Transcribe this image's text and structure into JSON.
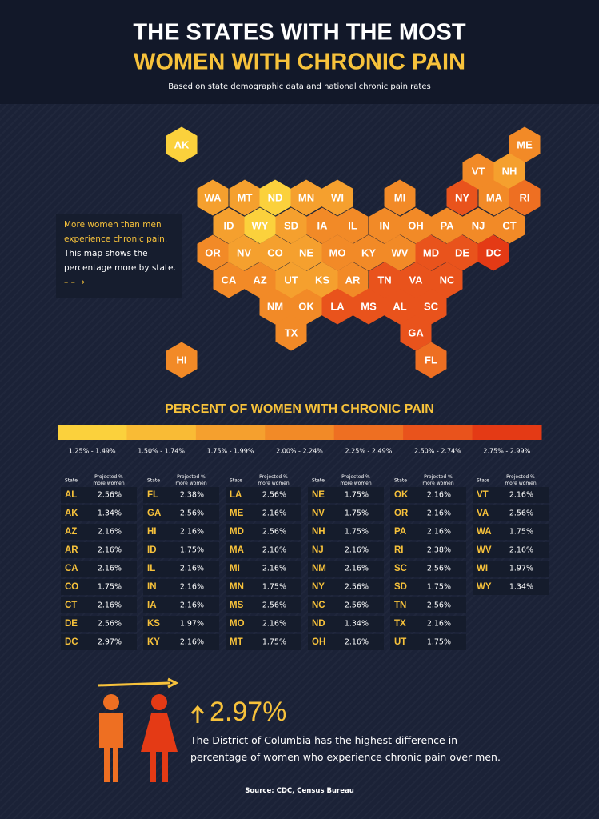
{
  "header": {
    "title_line1": "THE STATES WITH THE MOST",
    "title_line2": "WOMEN WITH CHRONIC PAIN",
    "subtitle": "Based on state demographic data and national chronic pain rates"
  },
  "note": {
    "highlight": "More women than men experience chronic pain.",
    "body": "This map shows the percentage more by state."
  },
  "legend": {
    "title": "PERCENT OF WOMEN WITH CHRONIC PAIN",
    "bins": [
      {
        "label": "1.25% - 1.49%",
        "color": "#fbd13c"
      },
      {
        "label": "1.50% - 1.74%",
        "color": "#f9bb35"
      },
      {
        "label": "1.75% - 1.99%",
        "color": "#f5a02e"
      },
      {
        "label": "2.00% - 2.24%",
        "color": "#f28a27"
      },
      {
        "label": "2.25% - 2.49%",
        "color": "#ee6f22"
      },
      {
        "label": "2.50% - 2.74%",
        "color": "#e9531c"
      },
      {
        "label": "2.75% - 2.99%",
        "color": "#e43a15"
      }
    ]
  },
  "table": {
    "headers": [
      "State",
      "Projected % more women"
    ],
    "rows": [
      [
        "AL",
        "2.56%"
      ],
      [
        "AK",
        "1.34%"
      ],
      [
        "AZ",
        "2.16%"
      ],
      [
        "AR",
        "2.16%"
      ],
      [
        "CA",
        "2.16%"
      ],
      [
        "CO",
        "1.75%"
      ],
      [
        "CT",
        "2.16%"
      ],
      [
        "DE",
        "2.56%"
      ],
      [
        "DC",
        "2.97%"
      ],
      [
        "FL",
        "2.38%"
      ],
      [
        "GA",
        "2.56%"
      ],
      [
        "HI",
        "2.16%"
      ],
      [
        "ID",
        "1.75%"
      ],
      [
        "IL",
        "2.16%"
      ],
      [
        "IN",
        "2.16%"
      ],
      [
        "IA",
        "2.16%"
      ],
      [
        "KS",
        "1.97%"
      ],
      [
        "KY",
        "2.16%"
      ],
      [
        "LA",
        "2.56%"
      ],
      [
        "ME",
        "2.16%"
      ],
      [
        "MD",
        "2.56%"
      ],
      [
        "MA",
        "2.16%"
      ],
      [
        "MI",
        "2.16%"
      ],
      [
        "MN",
        "1.75%"
      ],
      [
        "MS",
        "2.56%"
      ],
      [
        "MO",
        "2.16%"
      ],
      [
        "MT",
        "1.75%"
      ],
      [
        "NE",
        "1.75%"
      ],
      [
        "NV",
        "1.75%"
      ],
      [
        "NH",
        "1.75%"
      ],
      [
        "NJ",
        "2.16%"
      ],
      [
        "NM",
        "2.16%"
      ],
      [
        "NY",
        "2.56%"
      ],
      [
        "NC",
        "2.56%"
      ],
      [
        "ND",
        "1.34%"
      ],
      [
        "OH",
        "2.16%"
      ],
      [
        "OK",
        "2.16%"
      ],
      [
        "OR",
        "2.16%"
      ],
      [
        "PA",
        "2.16%"
      ],
      [
        "RI",
        "2.38%"
      ],
      [
        "SC",
        "2.56%"
      ],
      [
        "SD",
        "1.75%"
      ],
      [
        "TN",
        "2.56%"
      ],
      [
        "TX",
        "2.16%"
      ],
      [
        "UT",
        "1.75%"
      ],
      [
        "VT",
        "2.16%"
      ],
      [
        "VA",
        "2.56%"
      ],
      [
        "WA",
        "1.75%"
      ],
      [
        "WV",
        "2.16%"
      ],
      [
        "WI",
        "1.97%"
      ],
      [
        "WY",
        "1.34%"
      ]
    ]
  },
  "callout": {
    "value": "2.97%",
    "text": "The District of Columbia has the highest difference in percentage of women who experience chronic pain over men."
  },
  "source": "Source: CDC, Census Bureau"
}
